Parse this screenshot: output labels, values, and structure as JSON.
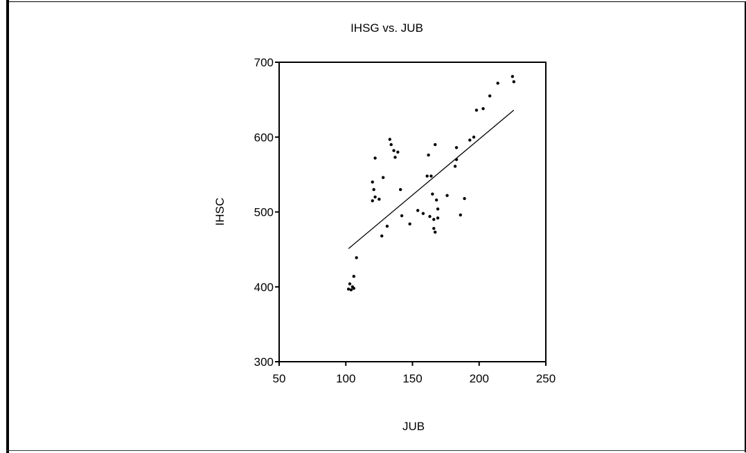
{
  "chart_data": {
    "type": "scatter",
    "title": "IHSG vs. JUB",
    "xlabel": "JUB",
    "ylabel": "IHSC",
    "xlim": [
      50,
      250
    ],
    "ylim": [
      300,
      700
    ],
    "x_ticks": [
      "50",
      "100",
      "150",
      "200",
      "250"
    ],
    "y_ticks": [
      "300",
      "400",
      "500",
      "600",
      "700"
    ],
    "grid": false,
    "points": [
      {
        "x": 102,
        "y": 397
      },
      {
        "x": 103,
        "y": 404
      },
      {
        "x": 104,
        "y": 396
      },
      {
        "x": 105,
        "y": 400
      },
      {
        "x": 106,
        "y": 398
      },
      {
        "x": 106,
        "y": 414
      },
      {
        "x": 108,
        "y": 439
      },
      {
        "x": 120,
        "y": 515
      },
      {
        "x": 120,
        "y": 540
      },
      {
        "x": 121,
        "y": 530
      },
      {
        "x": 122,
        "y": 520
      },
      {
        "x": 122,
        "y": 572
      },
      {
        "x": 125,
        "y": 517
      },
      {
        "x": 127,
        "y": 468
      },
      {
        "x": 128,
        "y": 546
      },
      {
        "x": 131,
        "y": 481
      },
      {
        "x": 133,
        "y": 597
      },
      {
        "x": 134,
        "y": 590
      },
      {
        "x": 136,
        "y": 582
      },
      {
        "x": 137,
        "y": 573
      },
      {
        "x": 139,
        "y": 580
      },
      {
        "x": 141,
        "y": 530
      },
      {
        "x": 142,
        "y": 495
      },
      {
        "x": 148,
        "y": 484
      },
      {
        "x": 154,
        "y": 502
      },
      {
        "x": 158,
        "y": 498
      },
      {
        "x": 161,
        "y": 548
      },
      {
        "x": 162,
        "y": 576
      },
      {
        "x": 163,
        "y": 494
      },
      {
        "x": 164,
        "y": 548
      },
      {
        "x": 165,
        "y": 524
      },
      {
        "x": 166,
        "y": 478
      },
      {
        "x": 166,
        "y": 490
      },
      {
        "x": 167,
        "y": 473
      },
      {
        "x": 167,
        "y": 590
      },
      {
        "x": 168,
        "y": 516
      },
      {
        "x": 169,
        "y": 492
      },
      {
        "x": 169,
        "y": 504
      },
      {
        "x": 176,
        "y": 522
      },
      {
        "x": 182,
        "y": 561
      },
      {
        "x": 183,
        "y": 570
      },
      {
        "x": 183,
        "y": 586
      },
      {
        "x": 186,
        "y": 496
      },
      {
        "x": 189,
        "y": 518
      },
      {
        "x": 193,
        "y": 596
      },
      {
        "x": 196,
        "y": 600
      },
      {
        "x": 198,
        "y": 636
      },
      {
        "x": 203,
        "y": 638
      },
      {
        "x": 208,
        "y": 655
      },
      {
        "x": 214,
        "y": 672
      },
      {
        "x": 225,
        "y": 681
      },
      {
        "x": 226,
        "y": 674
      }
    ],
    "fit_line": {
      "x": [
        102,
        226
      ],
      "y": [
        451,
        636
      ]
    }
  }
}
